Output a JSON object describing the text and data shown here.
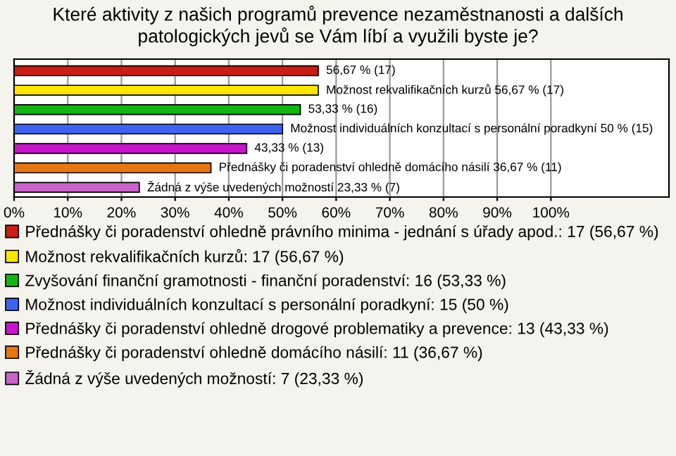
{
  "chart_data": {
    "type": "bar",
    "orientation": "horizontal",
    "title": "Které aktivity z našich programů prevence nezaměstnanosti a dalších patologických jevů se Vám líbí a využili byste je?",
    "categories": [
      null,
      null,
      null,
      null,
      null,
      null,
      null
    ],
    "series": [
      {
        "name": "Přednášky či poradenství ohledně právního minima - jednání s úřady apod.: 17 (56,67 %)",
        "color": "#c81e14",
        "values": [
          56.67,
          null,
          null,
          null,
          null,
          null,
          null
        ],
        "value_labels": [
          "56,67 % (17)",
          null,
          null,
          null,
          null,
          null,
          null
        ]
      },
      {
        "name": "Možnost rekvalifikačních kurzů: 17 (56,67 %)",
        "color": "#ffe600",
        "values": [
          null,
          56.67,
          null,
          null,
          null,
          null,
          null
        ],
        "value_labels": [
          null,
          "Možnost rekvalifikačních kurzů 56,67 % (17)",
          null,
          null,
          null,
          null,
          null
        ]
      },
      {
        "name": "Zvyšování finanční gramotnosti - finanční poradenství: 16 (53,33 %)",
        "color": "#14b414",
        "values": [
          null,
          null,
          53.33,
          null,
          null,
          null,
          null
        ],
        "value_labels": [
          null,
          null,
          "53,33 % (16)",
          null,
          null,
          null,
          null
        ]
      },
      {
        "name": "Možnost individuálních konzultací s personální poradkyní: 15 (50 %)",
        "color": "#3c64f0",
        "values": [
          null,
          null,
          null,
          50,
          null,
          null,
          null
        ],
        "value_labels": [
          null,
          null,
          null,
          "Možnost individuálních konzultací s personální poradkyní 50 % (15)",
          null,
          null,
          null
        ]
      },
      {
        "name": "Přednášky či poradenství ohledně drogové problematiky a prevence: 13 (43,33 %)",
        "color": "#c814c8",
        "values": [
          null,
          null,
          null,
          null,
          43.33,
          null,
          null
        ],
        "value_labels": [
          null,
          null,
          null,
          null,
          "43,33 % (13)",
          null,
          null
        ]
      },
      {
        "name": "Přednášky či poradenství ohledně domácího násilí: 11 (36,67 %)",
        "color": "#e67814",
        "values": [
          null,
          null,
          null,
          null,
          null,
          36.67,
          null
        ],
        "value_labels": [
          null,
          null,
          null,
          null,
          null,
          "Přednášky či poradenství ohledně domácího násilí 36,67 % (11)",
          null
        ]
      },
      {
        "name": "Žádná z výše uvedených možností: 7 (23,33 %)",
        "color": "#c864c8",
        "values": [
          null,
          null,
          null,
          null,
          null,
          null,
          23.33
        ],
        "value_labels": [
          null,
          null,
          null,
          null,
          null,
          null,
          "Žádná z výše uvedených možností 23,33 % (7)"
        ]
      }
    ],
    "xlim": [
      0,
      122
    ],
    "xticks": [
      {
        "value": 0,
        "label": "0%"
      },
      {
        "value": 10,
        "label": "10%"
      },
      {
        "value": 20,
        "label": "20%"
      },
      {
        "value": 30,
        "label": "30%"
      },
      {
        "value": 40,
        "label": "40%"
      },
      {
        "value": 50,
        "label": "50%"
      },
      {
        "value": 60,
        "label": "60%"
      },
      {
        "value": 70,
        "label": "70%"
      },
      {
        "value": 80,
        "label": "80%"
      },
      {
        "value": 90,
        "label": "90%"
      },
      {
        "value": 100,
        "label": "100%"
      }
    ],
    "grid": "x",
    "legend": "bottom",
    "tick_labels": "x"
  }
}
